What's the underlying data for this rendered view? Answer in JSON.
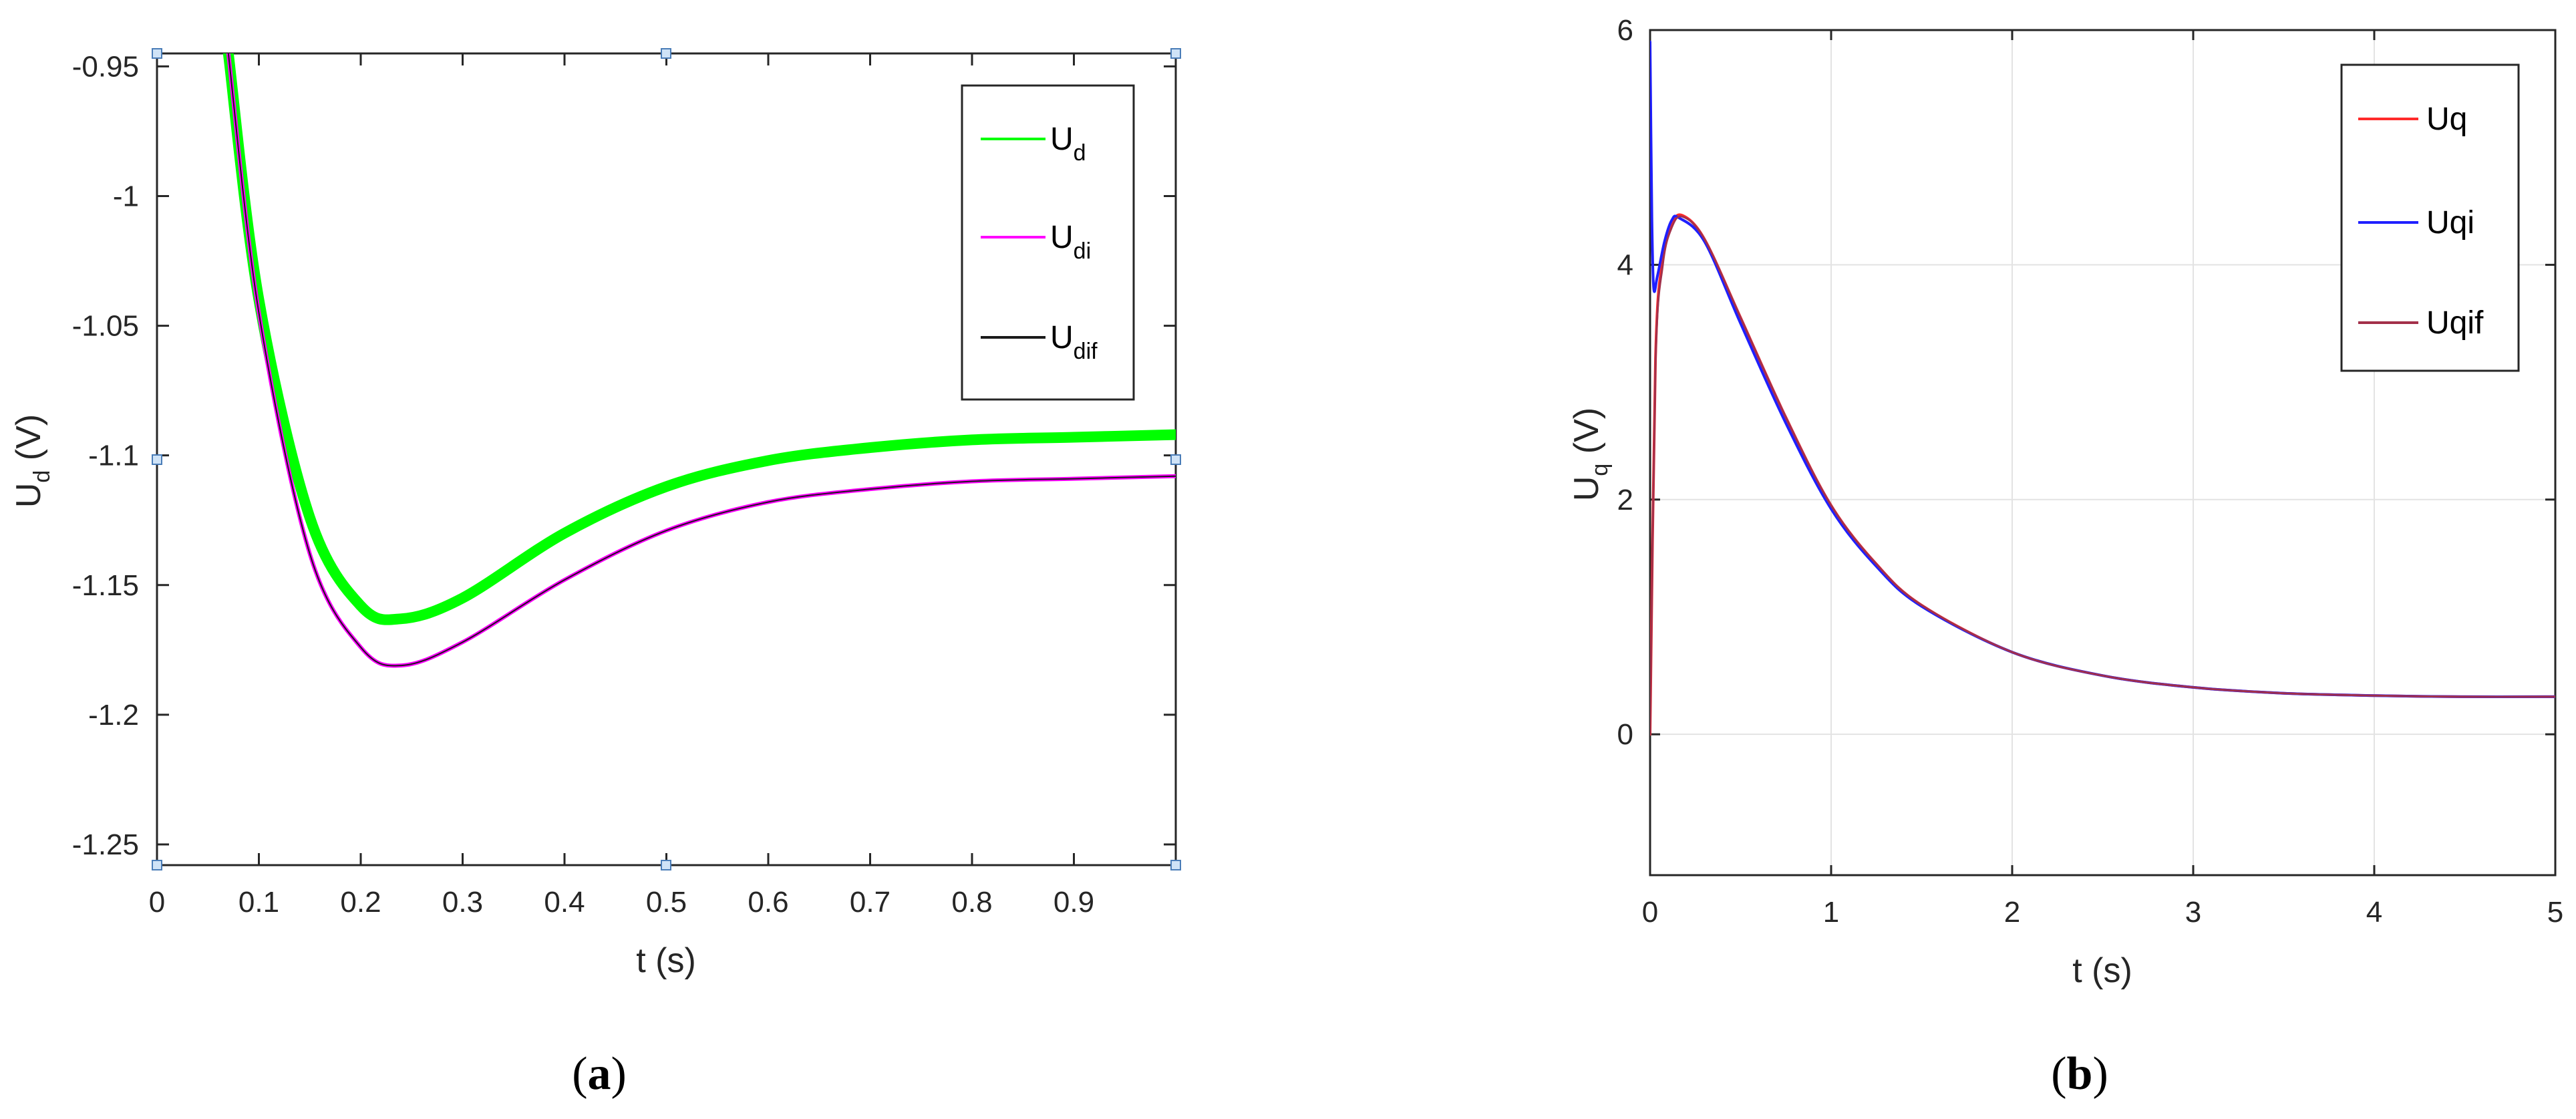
{
  "chart_data": [
    {
      "type": "line",
      "panel": "(a)",
      "panel_letter": "a",
      "xlabel": "t (s)",
      "ylabel": "U",
      "ylabel_sub": "d",
      "ylabel_unit": " (V)",
      "xlim": [
        0,
        1
      ],
      "ylim": [
        -1.258,
        -0.945
      ],
      "xticks": [
        0,
        0.1,
        0.2,
        0.3,
        0.4,
        0.5,
        0.6,
        0.7,
        0.8,
        0.9
      ],
      "xtick_labels": [
        "0",
        "0.1",
        "0.2",
        "0.3",
        "0.4",
        "0.5",
        "0.6",
        "0.7",
        "0.8",
        "0.9"
      ],
      "yticks": [
        -0.95,
        -1,
        -1.05,
        -1.1,
        -1.15,
        -1.2,
        -1.25
      ],
      "ytick_labels": [
        "-0.95",
        "-1",
        "-1.05",
        "-1.1",
        "-1.15",
        "-1.2",
        "-1.25"
      ],
      "grid": false,
      "legend_position": "top-right",
      "series": [
        {
          "name": "U",
          "sub": "d",
          "color": "#00ff00",
          "width": 16,
          "x": [
            0.07,
            0.1,
            0.15,
            0.2,
            0.24,
            0.3,
            0.4,
            0.5,
            0.6,
            0.7,
            0.8,
            0.9,
            1.0
          ],
          "y": [
            -0.945,
            -1.04,
            -1.124,
            -1.158,
            -1.163,
            -1.155,
            -1.13,
            -1.112,
            -1.102,
            -1.097,
            -1.094,
            -1.093,
            -1.092
          ]
        },
        {
          "name": "U",
          "sub": "di",
          "color": "#ff00ff",
          "width": 6,
          "x": [
            0.07,
            0.1,
            0.15,
            0.2,
            0.24,
            0.3,
            0.4,
            0.5,
            0.6,
            0.7,
            0.8,
            0.9,
            1.0
          ],
          "y": [
            -0.945,
            -1.045,
            -1.138,
            -1.174,
            -1.181,
            -1.172,
            -1.148,
            -1.129,
            -1.118,
            -1.113,
            -1.11,
            -1.109,
            -1.108
          ]
        },
        {
          "name": "U",
          "sub": "dif",
          "color": "#1a1a1a",
          "width": 2,
          "x": [
            0.07,
            0.1,
            0.15,
            0.2,
            0.24,
            0.3,
            0.4,
            0.5,
            0.6,
            0.7,
            0.8,
            0.9,
            1.0
          ],
          "y": [
            -0.945,
            -1.045,
            -1.138,
            -1.174,
            -1.181,
            -1.172,
            -1.148,
            -1.129,
            -1.118,
            -1.113,
            -1.11,
            -1.109,
            -1.108
          ]
        }
      ]
    },
    {
      "type": "line",
      "panel": "(b)",
      "panel_letter": "b",
      "xlabel": "t (s)",
      "ylabel": "U",
      "ylabel_sub": "q",
      "ylabel_unit": " (V)",
      "xlim": [
        0,
        5
      ],
      "ylim": [
        -1.2,
        6
      ],
      "xticks": [
        0,
        1,
        2,
        3,
        4,
        5
      ],
      "xtick_labels": [
        "0",
        "1",
        "2",
        "3",
        "4",
        "5"
      ],
      "yticks": [
        0,
        2,
        4,
        6
      ],
      "ytick_labels": [
        "0",
        "2",
        "4",
        "6"
      ],
      "grid": true,
      "legend_position": "top-right",
      "series": [
        {
          "name": "Uq",
          "color": "#ff2a2a",
          "width": 4,
          "x": [
            0,
            0.03,
            0.07,
            0.12,
            0.18,
            0.3,
            0.5,
            0.75,
            1.0,
            1.25,
            1.5,
            2.0,
            2.5,
            3.0,
            3.5,
            4.0,
            4.5,
            5.0
          ],
          "y": [
            0,
            3.2,
            4.05,
            4.35,
            4.42,
            4.22,
            3.55,
            2.7,
            1.95,
            1.45,
            1.1,
            0.7,
            0.5,
            0.4,
            0.35,
            0.33,
            0.32,
            0.32
          ]
        },
        {
          "name": "Uqi",
          "color": "#1f1fff",
          "width": 4,
          "x": [
            0,
            0.01,
            0.02,
            0.04,
            0.08,
            0.12,
            0.16,
            0.3,
            0.5,
            0.75,
            1.0,
            1.25,
            1.5,
            2.0,
            2.5,
            3.0,
            3.5,
            4.0,
            4.5,
            5.0
          ],
          "y": [
            5.9,
            4.4,
            3.8,
            3.9,
            4.2,
            4.38,
            4.4,
            4.2,
            3.5,
            2.65,
            1.92,
            1.43,
            1.09,
            0.7,
            0.5,
            0.4,
            0.35,
            0.33,
            0.32,
            0.32
          ]
        },
        {
          "name": "Uqif",
          "color": "#a3304a",
          "width": 3,
          "x": [
            0,
            0.03,
            0.07,
            0.12,
            0.18,
            0.3,
            0.5,
            0.75,
            1.0,
            1.25,
            1.5,
            2.0,
            2.5,
            3.0,
            3.5,
            4.0,
            4.5,
            5.0
          ],
          "y": [
            0,
            3.15,
            4.0,
            4.32,
            4.41,
            4.22,
            3.55,
            2.7,
            1.95,
            1.45,
            1.1,
            0.7,
            0.5,
            0.4,
            0.35,
            0.33,
            0.32,
            0.32
          ]
        }
      ]
    }
  ]
}
